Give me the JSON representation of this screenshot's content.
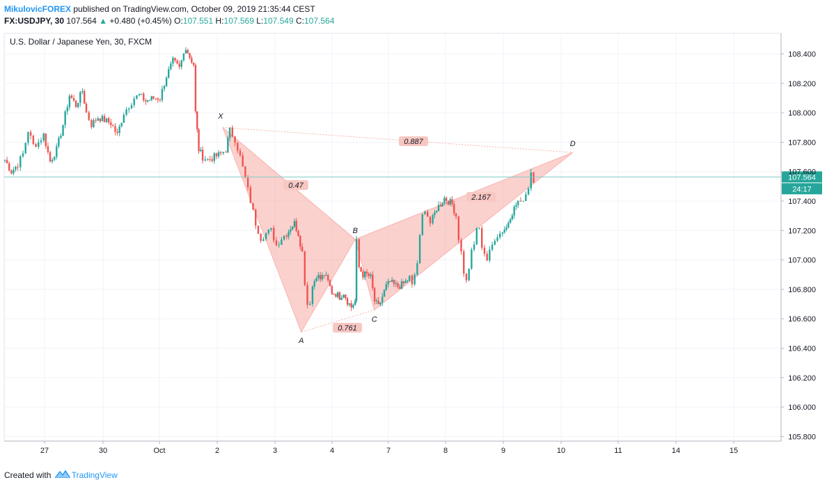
{
  "header": {
    "author": "MikulovicFOREX",
    "published_text": "published on TradingView.com, October 09, 2019 21:35:44 CEST",
    "symbol": "FX:USDJPY, 30",
    "last": "107.564",
    "change_arrow": "▲",
    "change": "+0.480 (+0.45%)",
    "o_label": "O:",
    "o_value": "107.551",
    "h_label": "H:",
    "h_value": "107.569",
    "l_label": "L:",
    "l_value": "107.549",
    "c_label": "C:",
    "c_value": "107.564"
  },
  "footer": {
    "created_with": "Created with",
    "brand": "TradingView"
  },
  "colors": {
    "up": "#26a69a",
    "down": "#ef5350",
    "pattern_fill": "#f8b3ad",
    "price_line": "#80cbc4",
    "brand": "#2196f3"
  },
  "chart_data": {
    "type": "candlestick",
    "title": "U.S. Dollar / Japanese Yen, 30, FXCM",
    "ylim": [
      105.75,
      108.55
    ],
    "y_ticks": [
      "108.400",
      "108.200",
      "108.000",
      "107.800",
      "107.600",
      "107.400",
      "107.200",
      "107.000",
      "106.800",
      "106.600",
      "106.400",
      "106.200",
      "106.000",
      "105.800"
    ],
    "x_ticks": [
      "27",
      "30",
      "Oct",
      "2",
      "3",
      "4",
      "7",
      "8",
      "9",
      "10",
      "11",
      "14",
      "15"
    ],
    "current_price": "107.564",
    "countdown": "24:17",
    "grid": true,
    "close_path": [
      [
        0.0,
        107.68
      ],
      [
        0.5,
        107.6
      ],
      [
        1.0,
        107.65
      ],
      [
        1.4,
        107.72
      ],
      [
        1.8,
        107.88
      ],
      [
        2.2,
        107.78
      ],
      [
        2.6,
        107.8
      ],
      [
        3.0,
        107.85
      ],
      [
        3.5,
        107.67
      ],
      [
        4.0,
        107.75
      ],
      [
        4.5,
        107.92
      ],
      [
        5.0,
        108.12
      ],
      [
        5.5,
        108.05
      ],
      [
        6.0,
        108.15
      ],
      [
        6.3,
        108.0
      ],
      [
        6.7,
        107.92
      ],
      [
        7.2,
        107.97
      ],
      [
        7.7,
        107.95
      ],
      [
        8.2,
        107.93
      ],
      [
        8.7,
        107.85
      ],
      [
        9.2,
        108.0
      ],
      [
        9.6,
        108.05
      ],
      [
        10.0,
        108.1
      ],
      [
        10.4,
        108.12
      ],
      [
        10.9,
        108.08
      ],
      [
        11.5,
        108.1
      ],
      [
        12.0,
        108.1
      ],
      [
        12.5,
        108.25
      ],
      [
        13.0,
        108.35
      ],
      [
        13.5,
        108.3
      ],
      [
        14.0,
        108.45
      ],
      [
        14.3,
        108.38
      ],
      [
        14.6,
        108.33
      ],
      [
        14.75,
        108.0
      ],
      [
        15.0,
        107.75
      ],
      [
        15.3,
        107.7
      ],
      [
        15.7,
        107.68
      ],
      [
        16.2,
        107.7
      ],
      [
        16.7,
        107.72
      ],
      [
        17.1,
        107.75
      ],
      [
        17.4,
        107.88
      ],
      [
        17.8,
        107.82
      ],
      [
        18.2,
        107.7
      ],
      [
        18.6,
        107.55
      ],
      [
        19.0,
        107.4
      ],
      [
        19.4,
        107.25
      ],
      [
        19.8,
        107.15
      ],
      [
        20.2,
        107.18
      ],
      [
        20.6,
        107.2
      ],
      [
        21.0,
        107.1
      ],
      [
        21.4,
        107.15
      ],
      [
        21.8,
        107.18
      ],
      [
        22.1,
        107.22
      ],
      [
        22.4,
        107.25
      ],
      [
        22.7,
        107.18
      ],
      [
        23.0,
        107.05
      ],
      [
        23.2,
        106.85
      ],
      [
        23.4,
        106.7
      ],
      [
        23.6,
        106.72
      ],
      [
        23.8,
        106.82
      ],
      [
        24.1,
        106.9
      ],
      [
        24.4,
        106.87
      ],
      [
        24.7,
        106.9
      ],
      [
        25.0,
        106.85
      ],
      [
        25.3,
        106.78
      ],
      [
        25.6,
        106.77
      ],
      [
        25.9,
        106.75
      ],
      [
        26.2,
        106.78
      ],
      [
        26.5,
        106.72
      ],
      [
        26.8,
        106.68
      ],
      [
        27.1,
        106.72
      ],
      [
        27.2,
        107.12
      ],
      [
        27.4,
        106.95
      ],
      [
        27.7,
        106.9
      ],
      [
        28.0,
        106.9
      ],
      [
        28.3,
        106.88
      ],
      [
        28.6,
        106.72
      ],
      [
        28.9,
        106.68
      ],
      [
        29.2,
        106.75
      ],
      [
        29.5,
        106.82
      ],
      [
        29.8,
        106.85
      ],
      [
        30.1,
        106.83
      ],
      [
        30.4,
        106.82
      ],
      [
        30.7,
        106.83
      ],
      [
        31.0,
        106.85
      ],
      [
        31.3,
        106.88
      ],
      [
        31.5,
        106.82
      ],
      [
        31.7,
        106.9
      ],
      [
        31.9,
        106.98
      ],
      [
        32.1,
        107.15
      ],
      [
        32.3,
        107.3
      ],
      [
        32.5,
        107.35
      ],
      [
        32.7,
        107.3
      ],
      [
        32.9,
        107.25
      ],
      [
        33.1,
        107.28
      ],
      [
        33.4,
        107.35
      ],
      [
        33.7,
        107.38
      ],
      [
        34.0,
        107.42
      ],
      [
        34.3,
        107.4
      ],
      [
        34.6,
        107.38
      ],
      [
        34.9,
        107.3
      ],
      [
        35.1,
        107.15
      ],
      [
        35.3,
        107.05
      ],
      [
        35.5,
        106.92
      ],
      [
        35.7,
        106.85
      ],
      [
        35.9,
        106.95
      ],
      [
        36.1,
        107.05
      ],
      [
        36.3,
        107.1
      ],
      [
        36.5,
        107.22
      ],
      [
        36.7,
        107.2
      ],
      [
        36.9,
        107.1
      ],
      [
        37.1,
        107.05
      ],
      [
        37.3,
        107.0
      ],
      [
        37.5,
        107.05
      ],
      [
        37.7,
        107.1
      ],
      [
        37.9,
        107.15
      ],
      [
        38.1,
        107.17
      ],
      [
        38.3,
        107.18
      ],
      [
        38.5,
        107.2
      ],
      [
        38.8,
        107.22
      ],
      [
        39.1,
        107.3
      ],
      [
        39.4,
        107.35
      ],
      [
        39.7,
        107.4
      ],
      [
        39.9,
        107.38
      ],
      [
        40.1,
        107.42
      ],
      [
        40.3,
        107.45
      ],
      [
        40.5,
        107.5
      ],
      [
        40.7,
        107.6
      ],
      [
        40.9,
        107.55
      ],
      [
        41.1,
        107.56
      ]
    ],
    "pattern": {
      "X": {
        "x": 16.85,
        "y": 107.9
      },
      "A": {
        "x": 22.93,
        "y": 106.51
      },
      "B": {
        "x": 27.1,
        "y": 107.14
      },
      "C": {
        "x": 28.58,
        "y": 106.66
      },
      "D": {
        "x": 43.93,
        "y": 107.73
      },
      "labels": [
        "X",
        "A",
        "B",
        "C",
        "D"
      ],
      "ratios": {
        "XB": "0.47",
        "AC": "0.761",
        "BD": "2.167",
        "XD": "0.887"
      }
    }
  }
}
